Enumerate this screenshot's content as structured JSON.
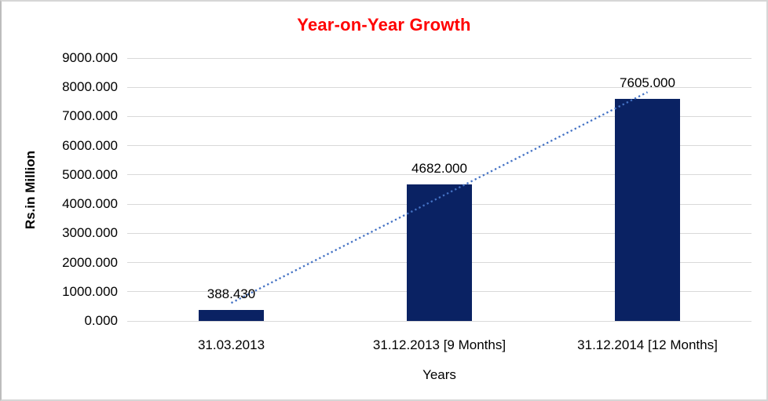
{
  "chart_data": {
    "type": "bar",
    "title": "Year-on-Year Growth",
    "title_color": "#ff0000",
    "categories": [
      "31.03.2013",
      "31.12.2013 [9 Months]",
      "31.12.2014 [12 Months]"
    ],
    "values": [
      388.43,
      4682.0,
      7605.0
    ],
    "data_labels": [
      "388.430",
      "4682.000",
      "7605.000"
    ],
    "xlabel": "Years",
    "ylabel": "Rs.in Million",
    "ylim": [
      0,
      9000
    ],
    "ytick_step": 1000,
    "ytick_labels": [
      "0.000",
      "1000.000",
      "2000.000",
      "3000.000",
      "4000.000",
      "5000.000",
      "6000.000",
      "7000.000",
      "8000.000",
      "9000.000"
    ],
    "grid": true,
    "gridline_color": "#d9d9d9",
    "legend": "none",
    "bar_color": "#0a2263",
    "trendline": {
      "type": "linear",
      "style": "dotted",
      "color": "#4472c4"
    }
  }
}
